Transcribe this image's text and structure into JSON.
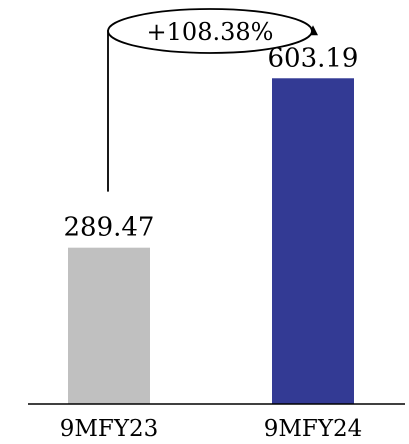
{
  "chart_data": {
    "type": "bar",
    "categories": [
      "9MFY23",
      "9MFY24"
    ],
    "values": [
      289.47,
      603.19
    ],
    "value_labels": [
      "289.47",
      "603.19"
    ],
    "colors": [
      "#c0c0c0",
      "#333a94"
    ],
    "annotation": {
      "text": "+108.38%",
      "from": "9MFY23",
      "to": "9MFY24"
    },
    "ylim": [
      0,
      700
    ],
    "grid": false,
    "legend": "none"
  }
}
